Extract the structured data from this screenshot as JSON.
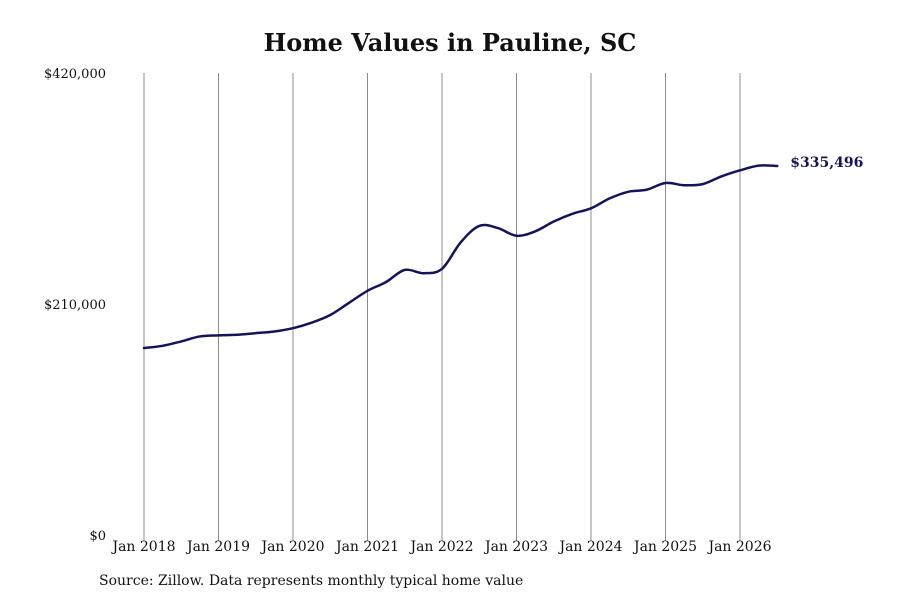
{
  "chart_data": {
    "type": "line",
    "title": "Home Values in Pauline, SC",
    "xlabel": "",
    "ylabel": "",
    "ylim": [
      0,
      420000
    ],
    "y_ticks": [
      {
        "value": 0,
        "label": "$0"
      },
      {
        "value": 210000,
        "label": "$210,000"
      },
      {
        "value": 420000,
        "label": "$420,000"
      }
    ],
    "x_range": [
      "2018-01",
      "2026-07"
    ],
    "x_ticks": [
      {
        "date": "2018-01",
        "label": "Jan 2018"
      },
      {
        "date": "2019-01",
        "label": "Jan 2019"
      },
      {
        "date": "2020-01",
        "label": "Jan 2020"
      },
      {
        "date": "2021-01",
        "label": "Jan 2021"
      },
      {
        "date": "2022-01",
        "label": "Jan 2022"
      },
      {
        "date": "2023-01",
        "label": "Jan 2023"
      },
      {
        "date": "2024-01",
        "label": "Jan 2024"
      },
      {
        "date": "2025-01",
        "label": "Jan 2025"
      },
      {
        "date": "2026-01",
        "label": "Jan 2026"
      }
    ],
    "grid": {
      "vertical": true,
      "horizontal": false
    },
    "series": [
      {
        "color": "#14145a",
        "x": [
          "2018-01",
          "2018-04",
          "2018-07",
          "2018-10",
          "2019-01",
          "2019-04",
          "2019-07",
          "2019-10",
          "2020-01",
          "2020-04",
          "2020-07",
          "2020-10",
          "2021-01",
          "2021-04",
          "2021-07",
          "2021-10",
          "2022-01",
          "2022-04",
          "2022-07",
          "2022-10",
          "2023-01",
          "2023-04",
          "2023-07",
          "2023-10",
          "2024-01",
          "2024-04",
          "2024-07",
          "2024-10",
          "2025-01",
          "2025-04",
          "2025-07",
          "2025-10",
          "2026-01",
          "2026-04",
          "2026-07"
        ],
        "y": [
          170000,
          172000,
          176000,
          180500,
          181500,
          182000,
          183500,
          185000,
          188000,
          193000,
          200000,
          211000,
          222000,
          230000,
          241000,
          238000,
          242000,
          266000,
          281000,
          279000,
          272000,
          276000,
          285000,
          292000,
          297000,
          306000,
          312000,
          314000,
          320000,
          318000,
          319000,
          326000,
          331500,
          335800,
          335496
        ]
      }
    ],
    "annotations": [
      {
        "text": "$335,496",
        "date": "2026-07",
        "value": 335496,
        "color": "#14145a"
      }
    ]
  },
  "footer": {
    "source": "Source: Zillow. Data represents monthly typical home value"
  }
}
